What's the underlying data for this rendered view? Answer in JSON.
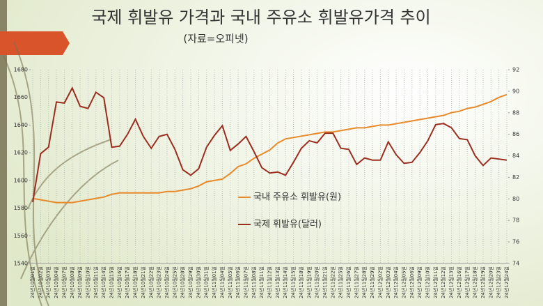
{
  "chart_data": {
    "type": "line",
    "title": "국제 휘발유 가격과 국내 주유소 휘발유가격 추이",
    "subtitle": "(자료=오피넷)",
    "categories": [
      "24년10월01일",
      "24년10월02일",
      "24년10월03일",
      "24년10월04일",
      "24년10월07일",
      "24년10월08일",
      "24년10월09일",
      "24년10월10일",
      "24년10월11일",
      "24년10월14일",
      "24년10월15일",
      "24년10월16일",
      "24년10월17일",
      "24년10월18일",
      "24년10월21일",
      "24년10월22일",
      "24년10월23일",
      "24년10월24일",
      "24년10월25일",
      "24년10월28일",
      "24년10월29일",
      "24년10월30일",
      "24년10월31일",
      "24년11월01일",
      "24년11월04일",
      "24년11월05일",
      "24년11월06일",
      "24년11월07일",
      "24년11월08일",
      "24년11월11일",
      "24년11월12일",
      "24년11월13일",
      "24년11월14일",
      "24년11월15일",
      "24년11월18일",
      "24년11월19일",
      "24년11월20일",
      "24년11월21일",
      "24년11월22일",
      "24년11월25일",
      "24년11월26일",
      "24년11월27일",
      "24년11월28일",
      "24년11월29일",
      "24년12월02일",
      "24년12월03일",
      "24년12월04일",
      "24년12월05일",
      "24년12월06일",
      "24년12월09일",
      "24년12월10일",
      "24년12월11일",
      "24년12월12일",
      "24년12월13일",
      "24년12월16일",
      "24년12월17일",
      "24년12월18일",
      "24년12월19일",
      "24년12월20일",
      "24년12월23일",
      "24년12월24일"
    ],
    "series": [
      {
        "name": "국내 주유소 휘발유(원)",
        "color": "#e8892a",
        "axis": "y",
        "values": [
          1587,
          1586,
          1585,
          1584,
          1584,
          1584,
          1585,
          1586,
          1587,
          1588,
          1590,
          1591,
          1591,
          1591,
          1591,
          1591,
          1591,
          1592,
          1592,
          1593,
          1594,
          1596,
          1599,
          1600,
          1601,
          1605,
          1610,
          1612,
          1616,
          1619,
          1622,
          1627,
          1630,
          1631,
          1632,
          1633,
          1634,
          1635,
          1635,
          1636,
          1637,
          1638,
          1638,
          1639,
          1640,
          1640,
          1641,
          1642,
          1643,
          1644,
          1645,
          1646,
          1647,
          1649,
          1650,
          1652,
          1653,
          1655,
          1657,
          1660,
          1662
        ]
      },
      {
        "name": "국제 휘발유(달러)",
        "color": "#9b2d1f",
        "axis": "y2",
        "values": [
          79.7,
          84.2,
          84.8,
          89,
          88.9,
          90.3,
          88.6,
          88.4,
          89.9,
          89.4,
          84.8,
          84.9,
          86,
          87.4,
          85.8,
          84.7,
          85.8,
          86,
          84.6,
          82.7,
          82.2,
          82.8,
          84.8,
          85.9,
          86.8,
          84.5,
          85.1,
          85.8,
          84.4,
          82.9,
          82.4,
          82.5,
          82.2,
          83.4,
          84.7,
          85.4,
          85.2,
          86.1,
          86.1,
          84.7,
          84.6,
          83.2,
          83.8,
          83.6,
          83.6,
          85.3,
          84.1,
          83.3,
          83.4,
          84.3,
          85.4,
          86.9,
          87,
          86.6,
          85.6,
          85.5,
          84,
          83.1,
          83.8,
          83.7,
          83.6
        ]
      }
    ],
    "ylim": [
      1540,
      1680
    ],
    "yticks": [
      1540,
      1560,
      1580,
      1600,
      1620,
      1640,
      1660,
      1680
    ],
    "y2lim": [
      74,
      92
    ],
    "y2ticks": [
      74,
      76,
      78,
      80,
      82,
      84,
      86,
      88,
      90,
      92
    ],
    "grid": true
  }
}
